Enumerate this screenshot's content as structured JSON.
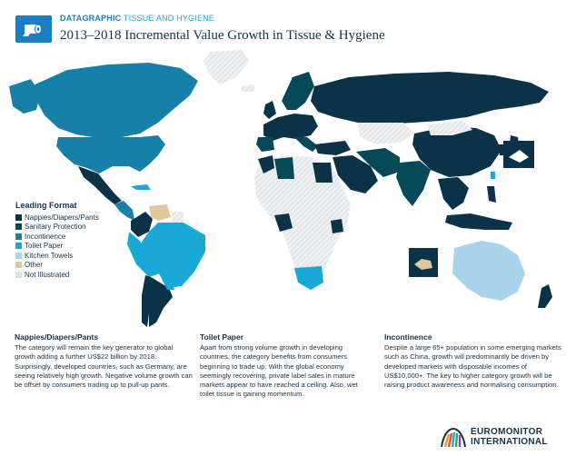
{
  "header": {
    "kicker_bold": "DATAGRAPHIC",
    "kicker_topic": "TISSUE AND HYGIENE",
    "title": "2013–2018 Incremental Value Growth in Tissue & Hygiene"
  },
  "colors": {
    "nappies": "#0b3247",
    "sanitary": "#064a59",
    "incontinence": "#1680a8",
    "toilet_paper": "#19a9d6",
    "kitchen_towels": "#a8d3ea",
    "other": "#ddc99a",
    "not_illustrated": "#e6e9ec"
  },
  "legend": {
    "title": "Leading Format",
    "items": [
      {
        "label": "Nappies/Diapers/Pants",
        "color": "#0b3247"
      },
      {
        "label": "Sanitary Protection",
        "color": "#064a59"
      },
      {
        "label": "Incontinence",
        "color": "#1680a8"
      },
      {
        "label": "Toilet Paper",
        "color": "#19a9d6"
      },
      {
        "label": "Kitchen Towels",
        "color": "#a8d3ea"
      },
      {
        "label": "Other",
        "color": "#ddc99a"
      },
      {
        "label": "Not Illustrated",
        "color": "#e6e9ec"
      }
    ]
  },
  "notes": [
    {
      "heading": "Nappies/Diapers/Pants",
      "body": "The category will remain the key generator to global growth adding a further US$22 billion by 2018. Surprisingly, developed countries, such as Germany, are seeing relatively high growth. Negative volume growth can be offset by consumers trading up to pull-up pants."
    },
    {
      "heading": "Toilet Paper",
      "body": "Apart from strong volume growth in developing countries, the category benefits from consumers beginning to trade up. With the global economy seemingly recovering, private label sales in mature markets appear to have reached a ceiling. Also, wet toilet tissue is gaining momentum."
    },
    {
      "heading": "Incontinence",
      "body": "Despite a large 65+ population in some emerging markets such as China, growth will predominantly be driven by developed markets with disposable incomes of US$10,000+. The key to higher category growth will be raising product awareness and normalising consumption."
    }
  ],
  "logo": {
    "line1": "EUROMONITOR",
    "line2": "INTERNATIONAL"
  }
}
